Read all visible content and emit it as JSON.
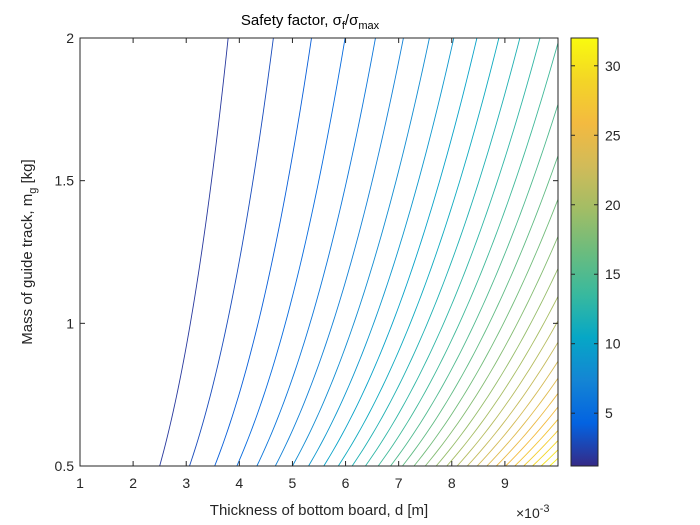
{
  "chart_data": {
    "type": "contour",
    "title": "Safety factor, σ",
    "title_sub1": "f",
    "title_mid": "/σ",
    "title_sub2": "max",
    "xlabel": "Thickness of bottom board, d [m]",
    "ylabel_main": "Mass of guide track, m",
    "ylabel_sub": "g",
    "ylabel_unit": " [kg]",
    "x_multiplier_base": "×10",
    "x_multiplier_exp": "-3",
    "xlim": [
      0.001,
      0.01
    ],
    "ylim": [
      0.5,
      2
    ],
    "x_ticks": [
      {
        "value": 0.001,
        "label": "1"
      },
      {
        "value": 0.002,
        "label": "2"
      },
      {
        "value": 0.003,
        "label": "3"
      },
      {
        "value": 0.004,
        "label": "4"
      },
      {
        "value": 0.005,
        "label": "5"
      },
      {
        "value": 0.006,
        "label": "6"
      },
      {
        "value": 0.007,
        "label": "7"
      },
      {
        "value": 0.008,
        "label": "8"
      },
      {
        "value": 0.009,
        "label": "9"
      }
    ],
    "y_ticks": [
      {
        "value": 0.5,
        "label": "0.5"
      },
      {
        "value": 1,
        "label": "1"
      },
      {
        "value": 1.5,
        "label": "1.5"
      },
      {
        "value": 2,
        "label": "2"
      }
    ],
    "colorbar": {
      "colormap": "parula",
      "range": [
        1.2,
        32
      ],
      "ticks": [
        {
          "value": 5,
          "label": "5"
        },
        {
          "value": 10,
          "label": "10"
        },
        {
          "value": 15,
          "label": "15"
        },
        {
          "value": 20,
          "label": "20"
        },
        {
          "value": 25,
          "label": "25"
        },
        {
          "value": 30,
          "label": "30"
        }
      ]
    },
    "field_model": "safety factor proportional to d^2 / m_g^0.6",
    "contour_levels": [
      2,
      3,
      4,
      5,
      6,
      7,
      8,
      9,
      10,
      11,
      12,
      13,
      14,
      15,
      16,
      17,
      18,
      19,
      20,
      21,
      22,
      23,
      24,
      25,
      26,
      27,
      28,
      29,
      30,
      31
    ]
  }
}
